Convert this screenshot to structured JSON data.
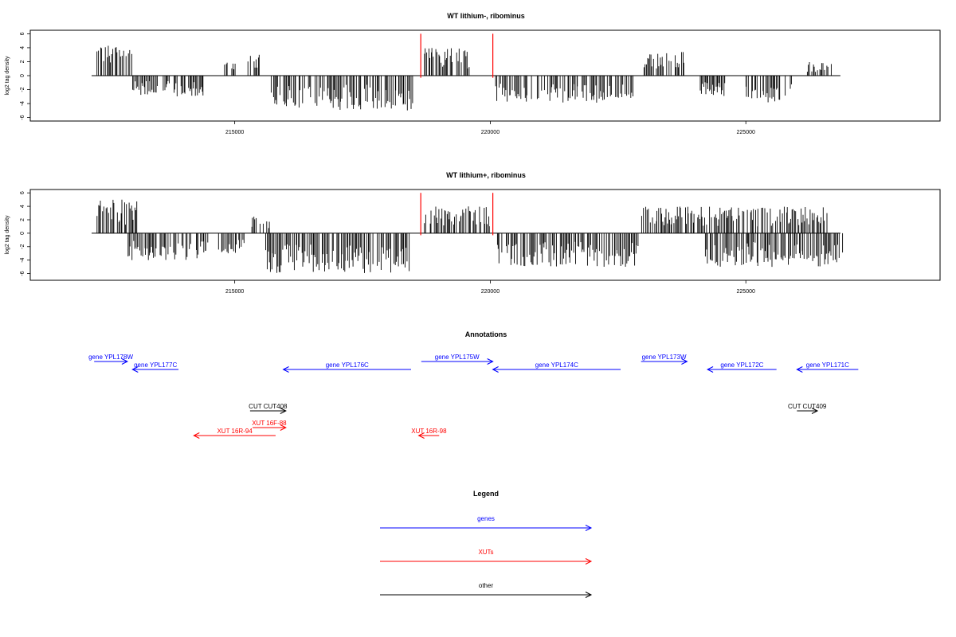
{
  "chart_data": [
    {
      "type": "bar",
      "title": "WT lithium-, ribominus",
      "ylabel": "log2 tag density",
      "xlabel": "",
      "xlim": [
        211000,
        228800
      ],
      "ylim": [
        -6.5,
        6.5
      ],
      "xticks": [
        "215000",
        "220000",
        "225000"
      ],
      "yticks": [
        "6",
        "4",
        "2",
        "0",
        "-2",
        "-4",
        "-6"
      ],
      "bar_color": "#000000",
      "highlight_color": "#ff0000",
      "baseline": [
        212200,
        226850
      ],
      "highlights": [
        {
          "x": 218640,
          "y": 6
        },
        {
          "x": 220050,
          "y": 6
        }
      ],
      "regions": [
        {
          "from": 212300,
          "to": 213000,
          "peak": 4.5,
          "sign": 1
        },
        {
          "from": 213000,
          "to": 213500,
          "peak": 3,
          "sign": -1
        },
        {
          "from": 213600,
          "to": 214400,
          "peak": 3,
          "sign": -1
        },
        {
          "from": 214800,
          "to": 215100,
          "peak": 2,
          "sign": 1
        },
        {
          "from": 215250,
          "to": 215500,
          "peak": 3,
          "sign": 1
        },
        {
          "from": 215700,
          "to": 218500,
          "peak": 5,
          "sign": -1
        },
        {
          "from": 218700,
          "to": 219600,
          "peak": 4,
          "sign": 1
        },
        {
          "from": 220100,
          "to": 222800,
          "peak": 4,
          "sign": -1
        },
        {
          "from": 223000,
          "to": 223800,
          "peak": 3.5,
          "sign": 1
        },
        {
          "from": 224100,
          "to": 224600,
          "peak": 3,
          "sign": -1
        },
        {
          "from": 224900,
          "to": 225900,
          "peak": 4,
          "sign": -1
        },
        {
          "from": 226200,
          "to": 226700,
          "peak": 2,
          "sign": 1
        }
      ]
    },
    {
      "type": "bar",
      "title": "WT lithium+, ribominus",
      "ylabel": "log2 tag density",
      "xlabel": "",
      "xlim": [
        211000,
        228800
      ],
      "ylim": [
        -7,
        6.5
      ],
      "xticks": [
        "215000",
        "220000",
        "225000"
      ],
      "yticks": [
        "6",
        "4",
        "2",
        "0",
        "-2",
        "-4",
        "-6"
      ],
      "bar_color": "#000000",
      "highlight_color": "#ff0000",
      "baseline": [
        212200,
        226850
      ],
      "highlights": [
        {
          "x": 218640,
          "y": 6
        },
        {
          "x": 220050,
          "y": 6
        }
      ],
      "regions": [
        {
          "from": 212300,
          "to": 213100,
          "peak": 5,
          "sign": 1
        },
        {
          "from": 212900,
          "to": 214500,
          "peak": 4,
          "sign": -1
        },
        {
          "from": 214600,
          "to": 215200,
          "peak": 3,
          "sign": -1
        },
        {
          "from": 215300,
          "to": 215700,
          "peak": 2.5,
          "sign": 1
        },
        {
          "from": 215600,
          "to": 218500,
          "peak": 6,
          "sign": -1
        },
        {
          "from": 218700,
          "to": 220000,
          "peak": 4,
          "sign": 1
        },
        {
          "from": 220100,
          "to": 222900,
          "peak": 5,
          "sign": -1
        },
        {
          "from": 222950,
          "to": 224200,
          "peak": 4,
          "sign": 1
        },
        {
          "from": 224200,
          "to": 226900,
          "peak": 5,
          "sign": -1
        },
        {
          "from": 224200,
          "to": 226600,
          "peak": 4,
          "sign": 1
        }
      ]
    }
  ],
  "annotations": {
    "title": "Annotations",
    "features": [
      {
        "label": "gene YPL178W",
        "kind": "gene",
        "dir": "right",
        "start": 212250,
        "end": 212900,
        "track": 0
      },
      {
        "label": "gene YPL177C",
        "kind": "gene",
        "dir": "left",
        "start": 213000,
        "end": 213900,
        "track": 1
      },
      {
        "label": "gene YPL176C",
        "kind": "gene",
        "dir": "left",
        "start": 215950,
        "end": 218450,
        "track": 1
      },
      {
        "label": "gene YPL175W",
        "kind": "gene",
        "dir": "right",
        "start": 218650,
        "end": 220050,
        "track": 0
      },
      {
        "label": "gene YPL174C",
        "kind": "gene",
        "dir": "left",
        "start": 220050,
        "end": 222550,
        "track": 1
      },
      {
        "label": "gene YPL173W",
        "kind": "gene",
        "dir": "right",
        "start": 222950,
        "end": 223850,
        "track": 0
      },
      {
        "label": "gene YPL172C",
        "kind": "gene",
        "dir": "left",
        "start": 224250,
        "end": 225600,
        "track": 1
      },
      {
        "label": "gene YPL171C",
        "kind": "gene",
        "dir": "left",
        "start": 226000,
        "end": 227200,
        "track": 1
      },
      {
        "label": "CUT CUT408",
        "kind": "other",
        "dir": "right",
        "start": 215300,
        "end": 216000,
        "track": 2
      },
      {
        "label": "CUT CUT409",
        "kind": "other",
        "dir": "right",
        "start": 226000,
        "end": 226400,
        "track": 2
      },
      {
        "label": "XUT 16F-88",
        "kind": "xut",
        "dir": "right",
        "start": 215350,
        "end": 216000,
        "track": 3
      },
      {
        "label": "XUT 16R-94",
        "kind": "xut",
        "dir": "left",
        "start": 214200,
        "end": 215800,
        "track": 4
      },
      {
        "label": "XUT 16R-98",
        "kind": "xut",
        "dir": "left",
        "start": 218600,
        "end": 219000,
        "track": 4
      }
    ]
  },
  "legend": {
    "title": "Legend",
    "items": [
      {
        "label": "genes",
        "kind": "gene"
      },
      {
        "label": "XUTs",
        "kind": "xut"
      },
      {
        "label": "other",
        "kind": "other"
      }
    ]
  },
  "colors": {
    "gene": "#0000ff",
    "xut": "#ff0000",
    "other": "#000000"
  }
}
